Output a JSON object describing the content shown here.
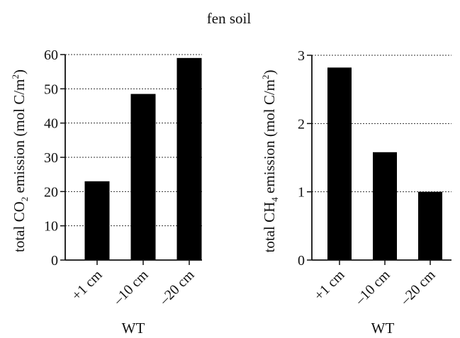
{
  "figure_title": "fen soil",
  "chart_data": [
    {
      "type": "bar",
      "title": "",
      "categories": [
        "+1 cm",
        "–10 cm",
        "–20 cm"
      ],
      "values": [
        23,
        48.5,
        59
      ],
      "ylabel": {
        "pre": "total CO",
        "sub": "2",
        "mid": " emission (mol C/m",
        "sup": "2",
        "post": ")"
      },
      "xlabel": "WT",
      "ylim": [
        0,
        60
      ],
      "yticks": [
        0,
        10,
        20,
        30,
        40,
        50,
        60
      ],
      "grid": "horizontal-dotted",
      "bar_color": "#000000"
    },
    {
      "type": "bar",
      "title": "",
      "categories": [
        "+1 cm",
        "–10 cm",
        "–20 cm"
      ],
      "values": [
        2.82,
        1.58,
        1.0
      ],
      "ylabel": {
        "pre": "total CH",
        "sub": "4",
        "mid": " emission (mol C/m",
        "sup": "2",
        "post": ")"
      },
      "xlabel": "WT",
      "ylim": [
        0,
        3
      ],
      "yticks": [
        0,
        1,
        2,
        3
      ],
      "grid": "horizontal-dotted",
      "bar_color": "#000000"
    }
  ]
}
